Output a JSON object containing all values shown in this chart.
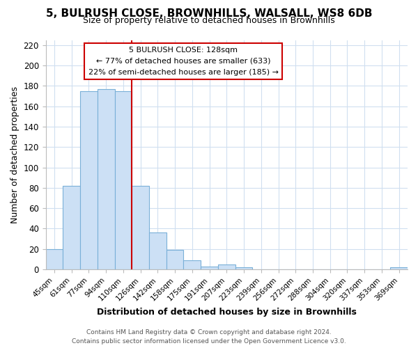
{
  "title": "5, BULRUSH CLOSE, BROWNHILLS, WALSALL, WS8 6DB",
  "subtitle": "Size of property relative to detached houses in Brownhills",
  "xlabel": "Distribution of detached houses by size in Brownhills",
  "ylabel": "Number of detached properties",
  "bin_labels": [
    "45sqm",
    "61sqm",
    "77sqm",
    "94sqm",
    "110sqm",
    "126sqm",
    "142sqm",
    "158sqm",
    "175sqm",
    "191sqm",
    "207sqm",
    "223sqm",
    "239sqm",
    "256sqm",
    "272sqm",
    "288sqm",
    "304sqm",
    "320sqm",
    "337sqm",
    "353sqm",
    "369sqm"
  ],
  "bar_heights": [
    20,
    82,
    175,
    177,
    175,
    82,
    36,
    19,
    9,
    3,
    5,
    2,
    0,
    0,
    0,
    0,
    0,
    0,
    0,
    0,
    2
  ],
  "bar_color": "#cce0f5",
  "bar_edge_color": "#7ab0d8",
  "vline_color": "#cc0000",
  "vline_x": 4.5,
  "ylim": [
    0,
    225
  ],
  "yticks": [
    0,
    20,
    40,
    60,
    80,
    100,
    120,
    140,
    160,
    180,
    200,
    220
  ],
  "annotation_title": "5 BULRUSH CLOSE: 128sqm",
  "annotation_line1": "← 77% of detached houses are smaller (633)",
  "annotation_line2": "22% of semi-detached houses are larger (185) →",
  "annotation_box_color": "#ffffff",
  "annotation_box_edge": "#cc0000",
  "footer_line1": "Contains HM Land Registry data © Crown copyright and database right 2024.",
  "footer_line2": "Contains public sector information licensed under the Open Government Licence v3.0.",
  "background_color": "#ffffff",
  "plot_bg_color": "#ffffff",
  "grid_color": "#d0dff0",
  "figsize": [
    6.0,
    5.0
  ],
  "dpi": 100
}
